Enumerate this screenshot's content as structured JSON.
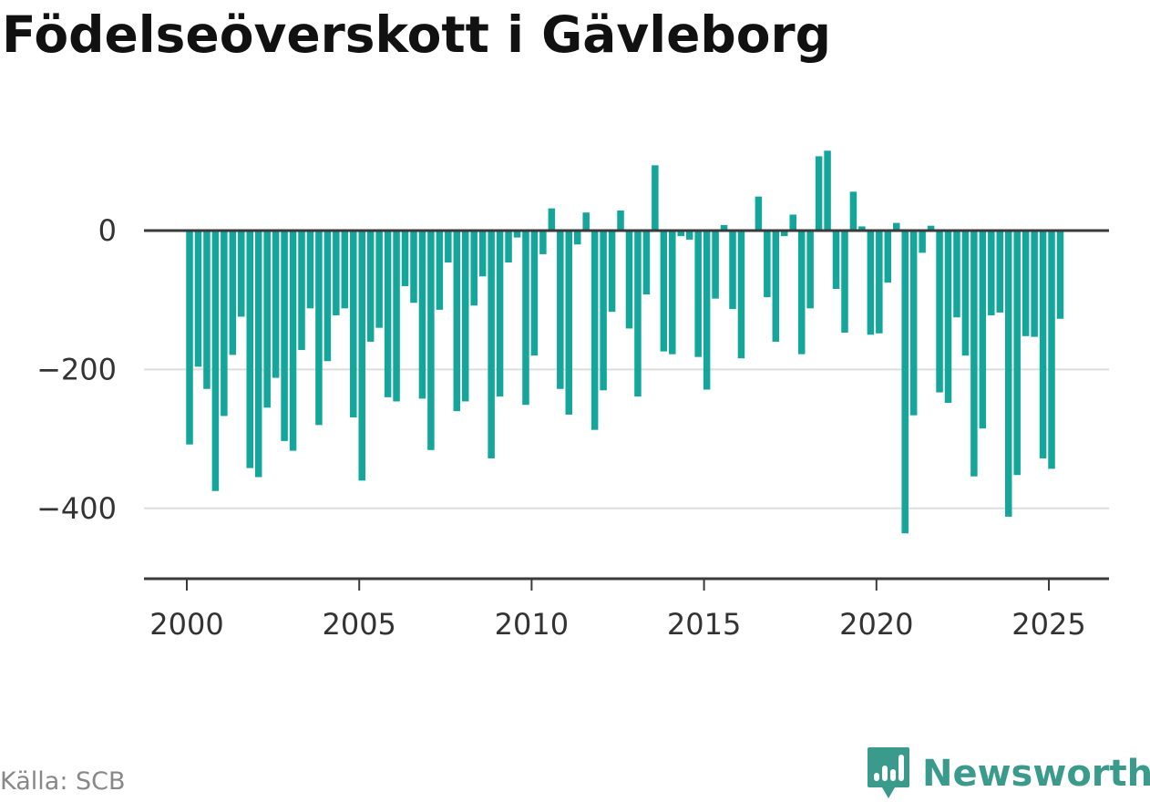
{
  "title": "Födelseöverskott i Gävleborg",
  "source": "Källa: SCB",
  "logo": {
    "name": "Newsworthy",
    "color": "#3a9a8c"
  },
  "colors": {
    "bar": "#14a69b",
    "zero_line": "#3a3a3a",
    "grid": "#dddddd",
    "axis": "#3a3a3a"
  },
  "chart_data": {
    "type": "bar",
    "title": "Födelseöverskott i Gävleborg",
    "xlabel": "",
    "ylabel": "",
    "ylim": [
      -500,
      130
    ],
    "xlim": [
      1999.6,
      2026.4
    ],
    "grid": "horizontal",
    "x_ticks": [
      2000,
      2005,
      2010,
      2015,
      2020,
      2025
    ],
    "y_ticks": [
      -400,
      -200,
      0
    ],
    "y_tick_labels": [
      "−400",
      "−200",
      "0"
    ],
    "x": [
      2000.08,
      2000.33,
      2000.58,
      2000.83,
      2001.08,
      2001.33,
      2001.58,
      2001.83,
      2002.08,
      2002.33,
      2002.58,
      2002.83,
      2003.08,
      2003.33,
      2003.58,
      2003.83,
      2004.08,
      2004.33,
      2004.58,
      2004.83,
      2005.08,
      2005.33,
      2005.58,
      2005.83,
      2006.08,
      2006.33,
      2006.58,
      2006.83,
      2007.08,
      2007.33,
      2007.58,
      2007.83,
      2008.08,
      2008.33,
      2008.58,
      2008.83,
      2009.08,
      2009.33,
      2009.58,
      2009.83,
      2010.08,
      2010.33,
      2010.58,
      2010.83,
      2011.08,
      2011.33,
      2011.58,
      2011.83,
      2012.08,
      2012.33,
      2012.58,
      2012.83,
      2013.08,
      2013.33,
      2013.58,
      2013.83,
      2014.08,
      2014.33,
      2014.58,
      2014.83,
      2015.08,
      2015.33,
      2015.58,
      2015.83,
      2016.08,
      2016.33,
      2016.58,
      2016.83,
      2017.08,
      2017.33,
      2017.58,
      2017.83,
      2018.08,
      2018.33,
      2018.58,
      2018.83,
      2019.08,
      2019.33,
      2019.58,
      2019.83,
      2020.08,
      2020.33,
      2020.58,
      2020.83,
      2021.08,
      2021.33,
      2021.58,
      2021.83,
      2022.08,
      2022.33,
      2022.58,
      2022.83,
      2023.08,
      2023.33,
      2023.58,
      2023.83,
      2024.08,
      2024.33,
      2024.58,
      2024.83,
      2025.08,
      2025.33
    ],
    "values": [
      -308,
      -196,
      -228,
      -375,
      -267,
      -179,
      -124,
      -342,
      -355,
      -255,
      -212,
      -303,
      -317,
      -172,
      -112,
      -280,
      -188,
      -122,
      -112,
      -269,
      -360,
      -160,
      -140,
      -240,
      -246,
      -80,
      -104,
      -242,
      -316,
      -114,
      -46,
      -260,
      -246,
      -108,
      -66,
      -328,
      -239,
      -46,
      -10,
      -251,
      -180,
      -34,
      32,
      -228,
      -265,
      -20,
      26,
      -287,
      -230,
      -117,
      29,
      -141,
      -239,
      -92,
      94,
      -174,
      -178,
      -8,
      -13,
      -182,
      -229,
      -98,
      8,
      -113,
      -184,
      0,
      49,
      -96,
      -160,
      -8,
      23,
      -178,
      -112,
      107,
      115,
      -84,
      -147,
      56,
      6,
      -150,
      -148,
      -75,
      11,
      -436,
      -266,
      -32,
      7,
      -233,
      -248,
      -125,
      -180,
      -354,
      -285,
      -122,
      -118,
      -412,
      -352,
      -152,
      -153,
      -328,
      -343,
      -127
    ]
  }
}
